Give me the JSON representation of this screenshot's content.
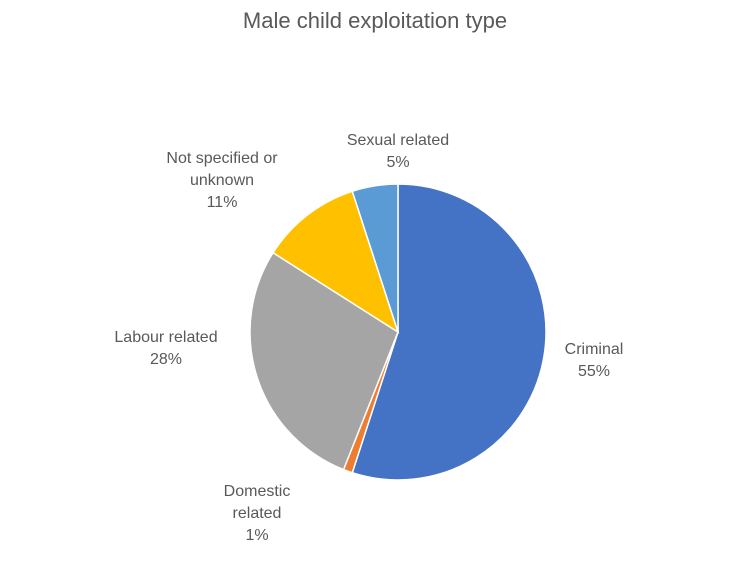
{
  "chart_data": {
    "type": "pie",
    "title": "Male child exploitation type",
    "slices": [
      {
        "name": "Criminal",
        "value": 55,
        "label": "Criminal",
        "pct": "55%",
        "color": "#4472C4"
      },
      {
        "name": "Domestic related",
        "value": 1,
        "label": "Domestic related",
        "pct": "1%",
        "color": "#ED7D31"
      },
      {
        "name": "Labour related",
        "value": 28,
        "label": "Labour related",
        "pct": "28%",
        "color": "#A5A5A5"
      },
      {
        "name": "Not specified or unknown",
        "value": 11,
        "label": "Not specified or unknown",
        "pct": "11%",
        "color": "#FFC000"
      },
      {
        "name": "Sexual related",
        "value": 5,
        "label": "Sexual related",
        "pct": "5%",
        "color": "#5B9BD5"
      }
    ]
  }
}
